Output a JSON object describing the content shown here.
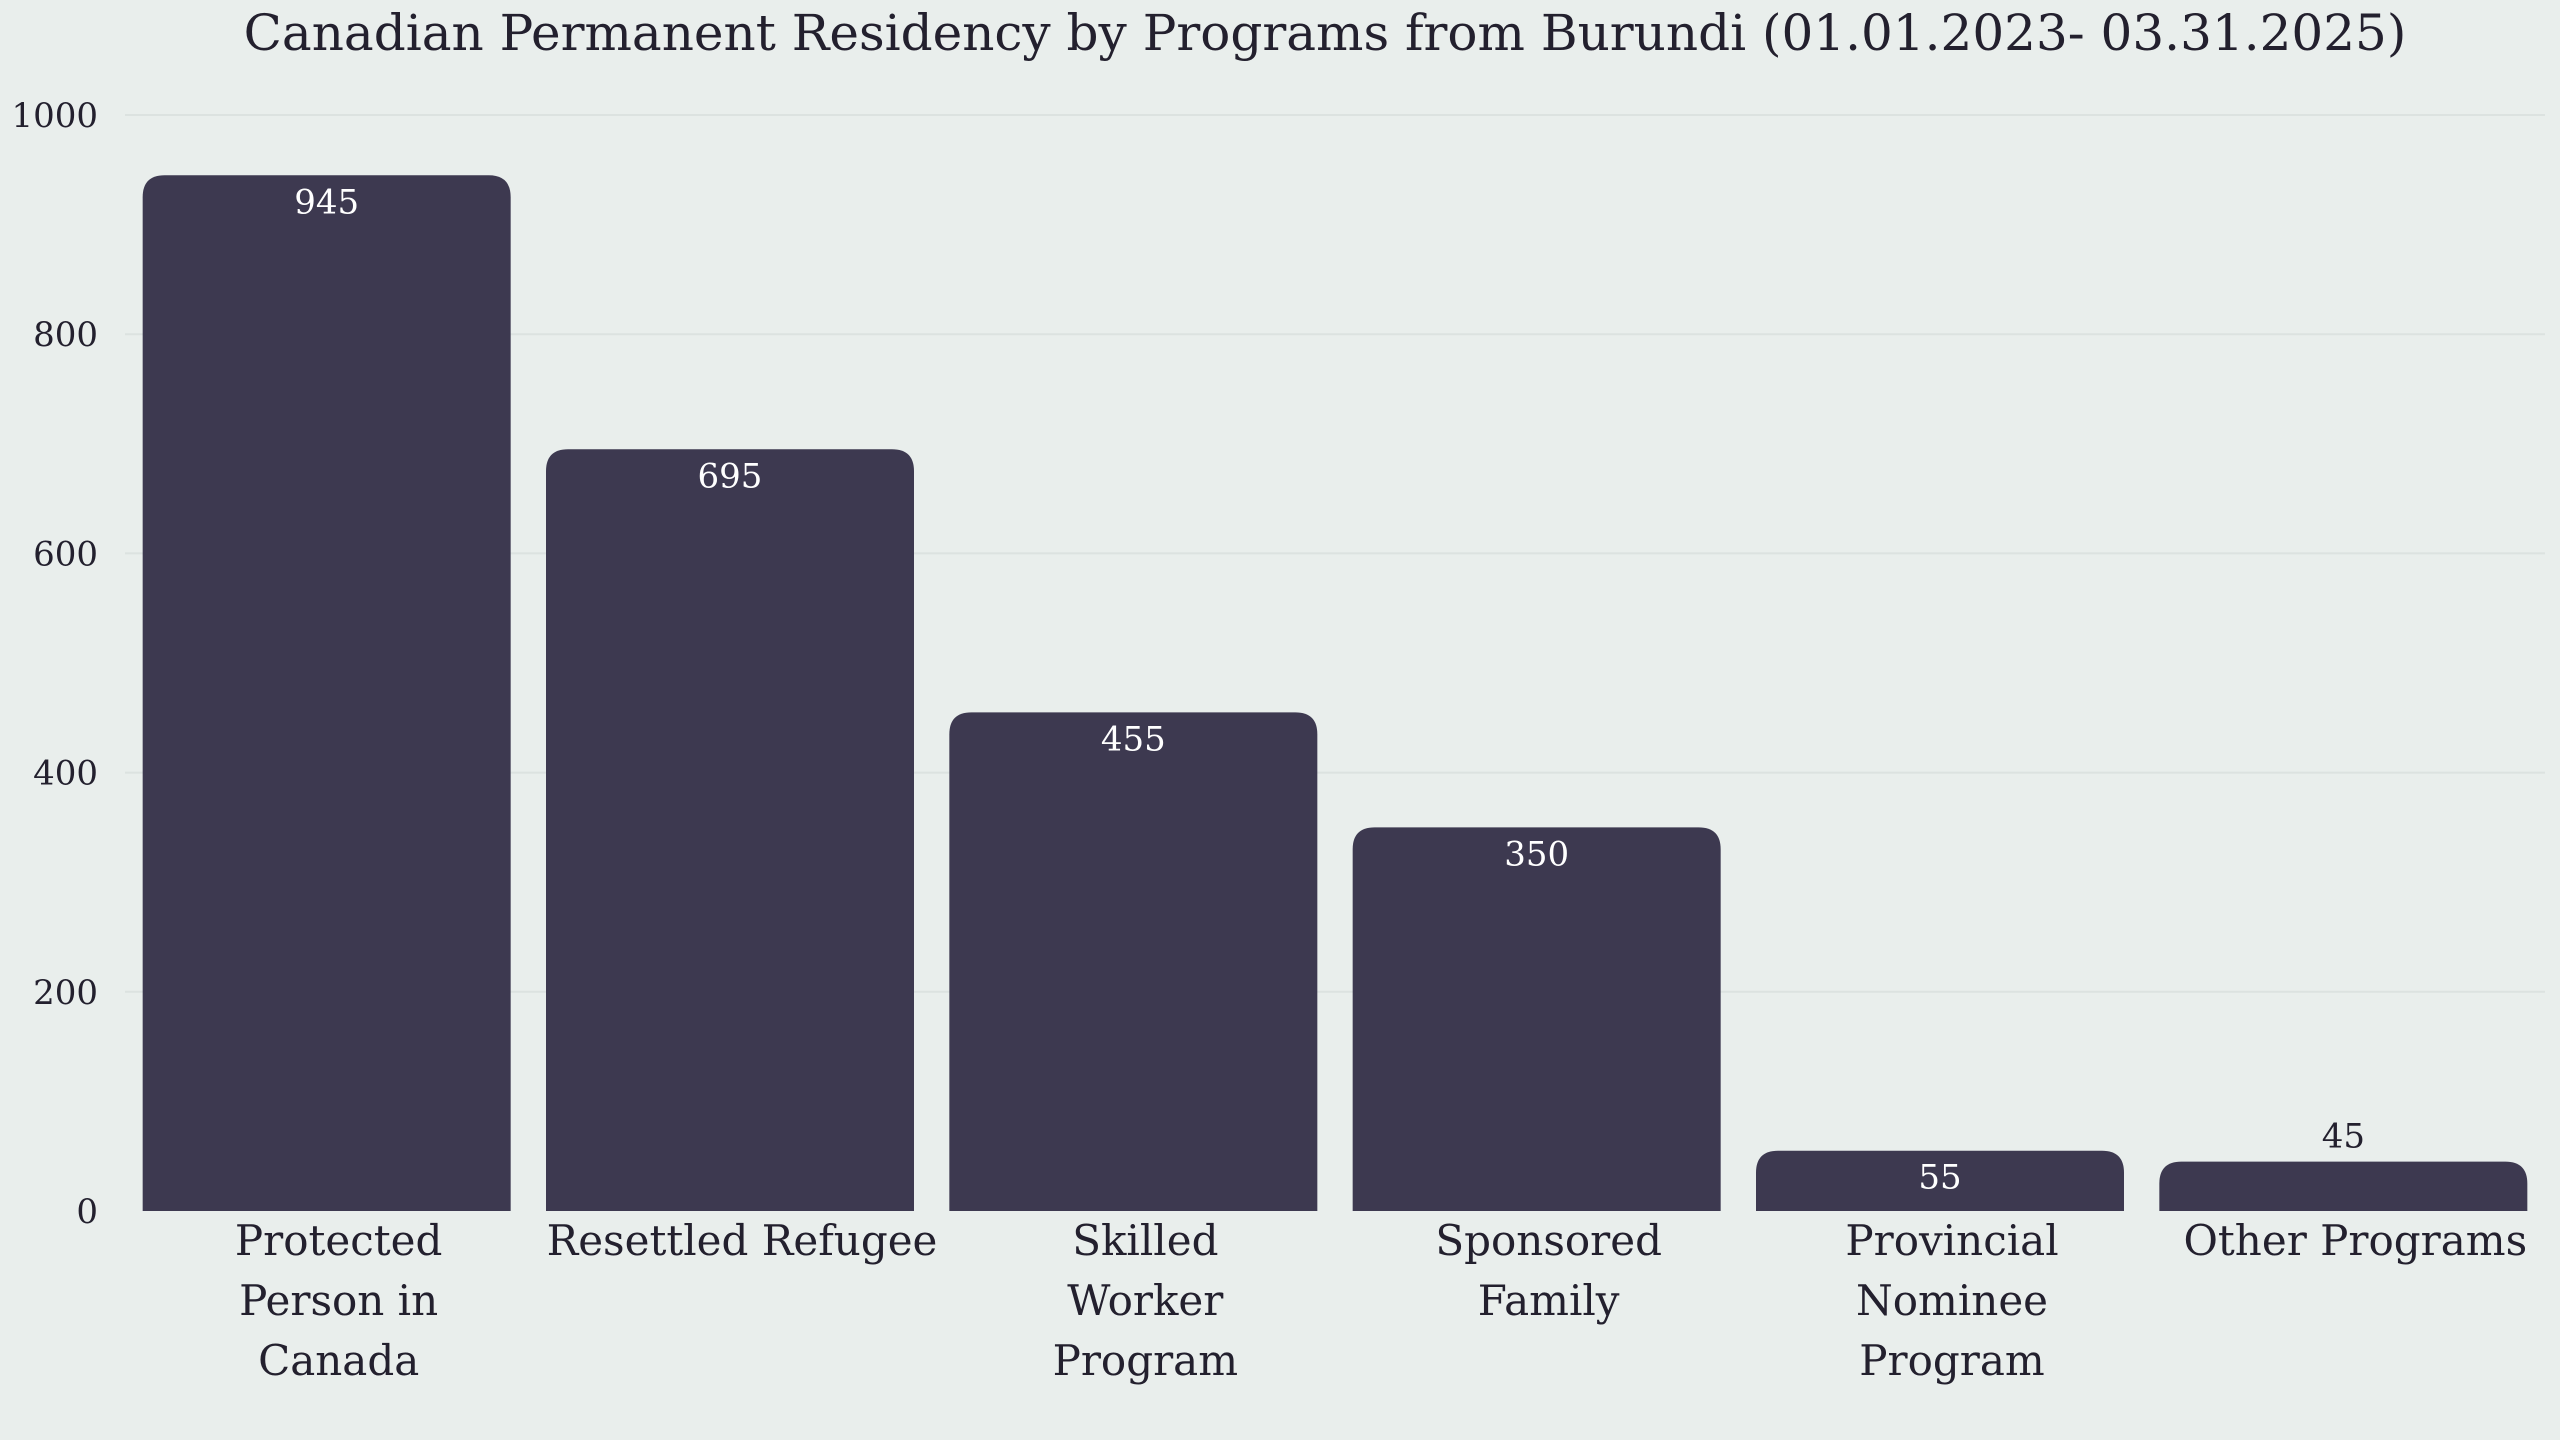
{
  "chart_data": {
    "type": "bar",
    "title": "Canadian Permanent Residency by Programs from Burundi (01.01.2023- 03.31.2025)",
    "xlabel": "",
    "ylabel": "",
    "categories": [
      [
        "Protected",
        "Person in",
        "Canada"
      ],
      [
        "Resettled Refugee"
      ],
      [
        "Skilled",
        "Worker",
        "Program"
      ],
      [
        "Sponsored",
        "Family"
      ],
      [
        "Provincial",
        "Nominee",
        "Program"
      ],
      [
        "Other Programs"
      ]
    ],
    "values": [
      945,
      695,
      455,
      350,
      55,
      45
    ],
    "value_labels": [
      "945",
      "695",
      "455",
      "350",
      "55",
      "45"
    ],
    "ylim": [
      0,
      1000
    ],
    "yticks": [
      0,
      200,
      400,
      600,
      800,
      1000
    ],
    "grid": true,
    "legend": "none",
    "colors": {
      "bar": "#3D3950",
      "label_inside": "#FFFFFF",
      "label_outside": "#23202E",
      "background": "#E9EEEC"
    }
  }
}
